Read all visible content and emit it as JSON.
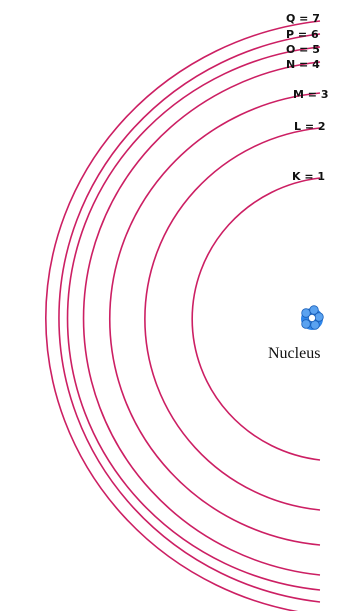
{
  "diagram": {
    "shells": [
      {
        "id": "K",
        "label": "K = 1"
      },
      {
        "id": "L",
        "label": "L = 2"
      },
      {
        "id": "M",
        "label": "M = 3"
      },
      {
        "id": "N",
        "label": "N = 4"
      },
      {
        "id": "O",
        "label": "O = 5"
      },
      {
        "id": "P",
        "label": "P = 6"
      },
      {
        "id": "Q",
        "label": "Q = 7"
      }
    ],
    "nucleus_label": "Nucleus",
    "colors": {
      "orbit": "#cc1f63",
      "nucleus": "#2f86ea",
      "text": "#111111"
    }
  }
}
